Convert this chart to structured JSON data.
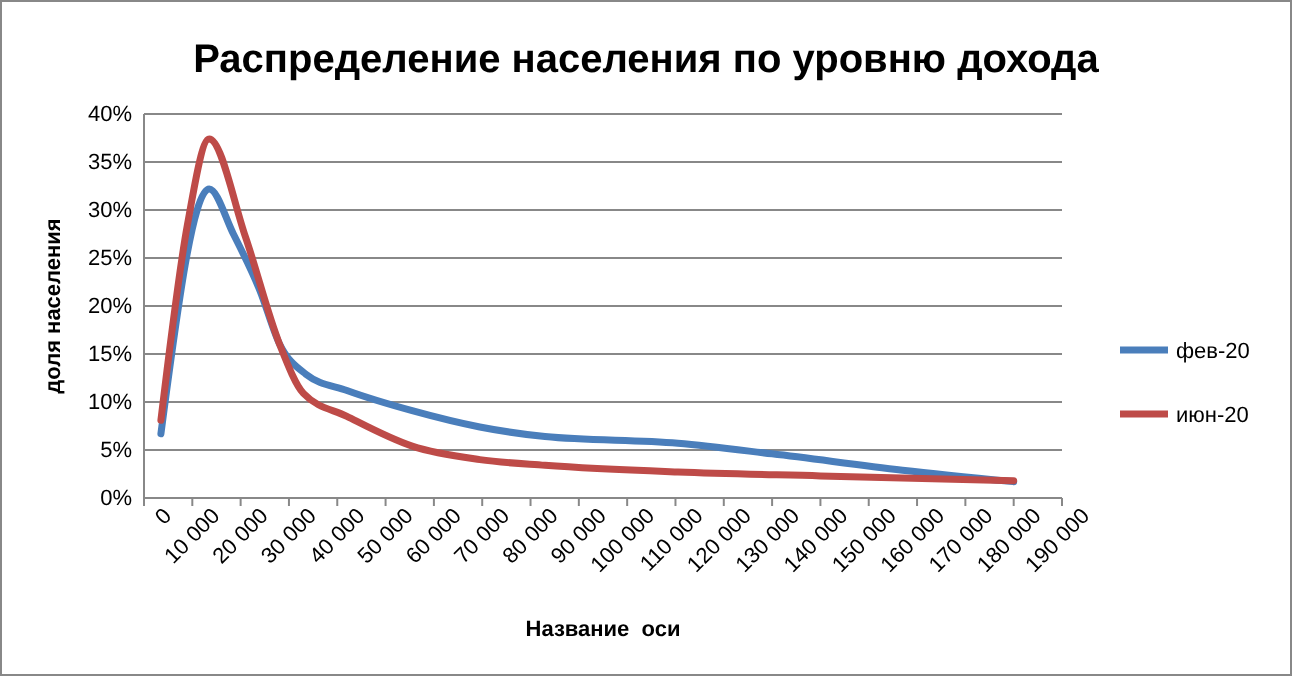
{
  "chart_data": {
    "type": "line",
    "title": "Распределение населения по уровню дохода",
    "xlabel": "Название  оси",
    "ylabel": "доля населения",
    "xlim": [
      0,
      190000
    ],
    "xticks": [
      0,
      {
        "value": 10000,
        "label": "10 000"
      },
      {
        "value": 20000,
        "label": "20 000"
      },
      {
        "value": 30000,
        "label": "30 000"
      },
      {
        "value": 40000,
        "label": "40 000"
      },
      {
        "value": 50000,
        "label": "50 000"
      },
      {
        "value": 60000,
        "label": "60 000"
      },
      {
        "value": 70000,
        "label": "70 000"
      },
      {
        "value": 80000,
        "label": "80 000"
      },
      {
        "value": 90000,
        "label": "90 000"
      },
      {
        "value": 100000,
        "label": "100 000"
      },
      {
        "value": 110000,
        "label": "110 000"
      },
      {
        "value": 120000,
        "label": "120 000"
      },
      {
        "value": 130000,
        "label": "130 000"
      },
      {
        "value": 140000,
        "label": "140 000"
      },
      {
        "value": 150000,
        "label": "150 000"
      },
      {
        "value": 160000,
        "label": "160 000"
      },
      {
        "value": 170000,
        "label": "170 000"
      },
      {
        "value": 180000,
        "label": "180 000"
      },
      {
        "value": 190000,
        "label": "190 000"
      }
    ],
    "ylim": [
      0,
      40
    ],
    "yticks": [
      {
        "value": 0,
        "label": "0%"
      },
      {
        "value": 5,
        "label": "5%"
      },
      {
        "value": 10,
        "label": "10%"
      },
      {
        "value": 15,
        "label": "15%"
      },
      {
        "value": 20,
        "label": "20%"
      },
      {
        "value": 25,
        "label": "25%"
      },
      {
        "value": 30,
        "label": "30%"
      },
      {
        "value": 35,
        "label": "35%"
      },
      {
        "value": 40,
        "label": "40%"
      }
    ],
    "grid": "y",
    "legend": "right",
    "marker": "none",
    "line_style": "solid",
    "series": [
      {
        "name": "фев-20",
        "color": "#4a7ebb",
        "x": [
          3500,
          13500,
          18500,
          24000,
          28000,
          33500,
          42000,
          55500,
          69500,
          83000,
          110500,
          130000,
          157000,
          180000
        ],
        "values": [
          6.7,
          32.2,
          27.5,
          21.6,
          16.1,
          12.9,
          11.2,
          9.1,
          7.4,
          6.4,
          5.7,
          4.6,
          2.9,
          1.7
        ]
      },
      {
        "name": "июн-20",
        "color": "#be4b48",
        "x": [
          3500,
          9000,
          13500,
          21000,
          28000,
          33000,
          42000,
          55500,
          69500,
          83000,
          110500,
          140000,
          180000
        ],
        "values": [
          8.1,
          28.5,
          37.4,
          27.2,
          16.1,
          10.9,
          8.5,
          5.4,
          4.0,
          3.4,
          2.7,
          2.3,
          1.8
        ]
      }
    ]
  }
}
